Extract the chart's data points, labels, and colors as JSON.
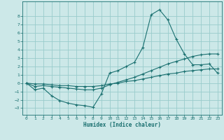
{
  "xlabel": "Humidex (Indice chaleur)",
  "xlim": [
    -0.5,
    23.5
  ],
  "ylim": [
    -3.8,
    9.8
  ],
  "yticks": [
    -3,
    -2,
    -1,
    0,
    1,
    2,
    3,
    4,
    5,
    6,
    7,
    8
  ],
  "xticks": [
    0,
    1,
    2,
    3,
    4,
    5,
    6,
    7,
    8,
    9,
    10,
    11,
    12,
    13,
    14,
    15,
    16,
    17,
    18,
    19,
    20,
    21,
    22,
    23
  ],
  "bg_color": "#cce8e8",
  "grid_color": "#99cccc",
  "line_color": "#1a7070",
  "line1_x": [
    0,
    1,
    2,
    3,
    4,
    5,
    6,
    7,
    8,
    9,
    10,
    11,
    12,
    13,
    14,
    15,
    16,
    17,
    18,
    19,
    20,
    21,
    22,
    23
  ],
  "line1_y": [
    0,
    -0.8,
    -0.6,
    -1.5,
    -2.1,
    -2.4,
    -2.6,
    -2.7,
    -2.9,
    -1.3,
    1.2,
    1.5,
    2.0,
    2.5,
    4.3,
    8.2,
    8.8,
    7.6,
    5.3,
    3.5,
    2.2,
    2.2,
    2.3,
    1.2
  ],
  "line2_x": [
    0,
    1,
    2,
    3,
    4,
    5,
    6,
    7,
    8,
    9,
    10,
    11,
    12,
    13,
    14,
    15,
    16,
    17,
    18,
    19,
    20,
    21,
    22,
    23
  ],
  "line2_y": [
    0,
    -0.4,
    -0.3,
    -0.4,
    -0.5,
    -0.6,
    -0.7,
    -0.8,
    -0.8,
    -0.6,
    -0.2,
    0.1,
    0.4,
    0.7,
    1.1,
    1.5,
    1.9,
    2.3,
    2.6,
    2.9,
    3.2,
    3.4,
    3.5,
    3.5
  ],
  "line3_x": [
    0,
    1,
    2,
    3,
    4,
    5,
    6,
    7,
    8,
    9,
    10,
    11,
    12,
    13,
    14,
    15,
    16,
    17,
    18,
    19,
    20,
    21,
    22,
    23
  ],
  "line3_y": [
    0,
    -0.1,
    -0.1,
    -0.2,
    -0.3,
    -0.3,
    -0.4,
    -0.4,
    -0.4,
    -0.3,
    -0.1,
    0.0,
    0.2,
    0.3,
    0.5,
    0.7,
    0.9,
    1.1,
    1.2,
    1.4,
    1.5,
    1.6,
    1.7,
    1.7
  ],
  "tick_fontsize": 4.5,
  "xlabel_fontsize": 5.5
}
